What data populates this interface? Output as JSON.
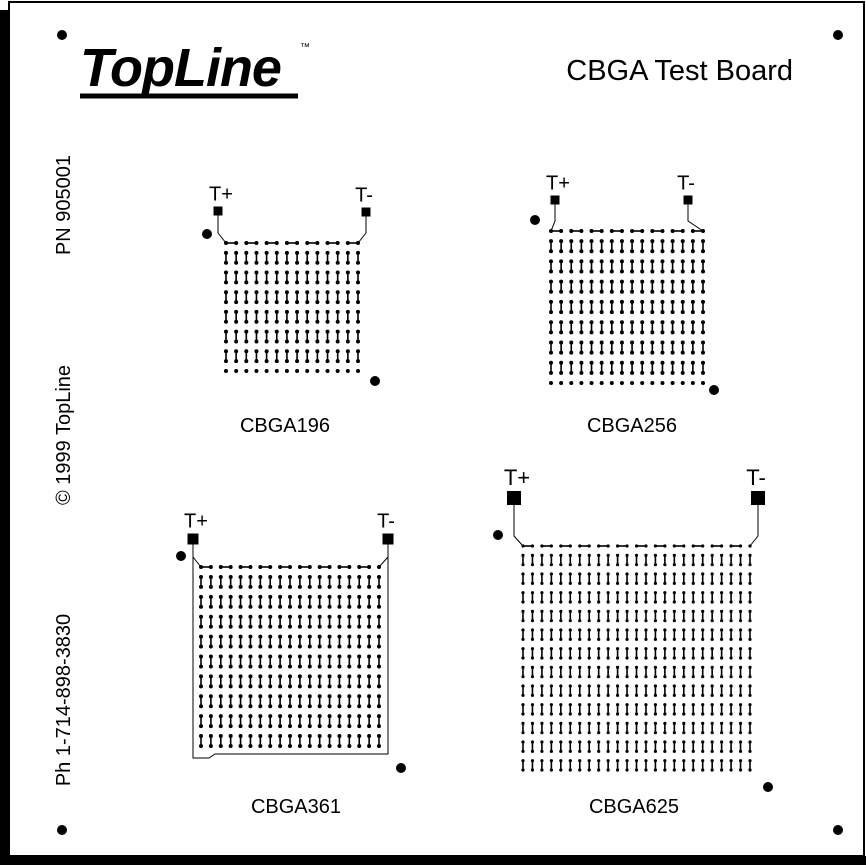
{
  "header": {
    "logo": "TopLine",
    "trademark": "™",
    "title": "CBGA Test Board"
  },
  "side_text": [
    "PN 905001",
    "© 1999 TopLine",
    "Ph 1-714-898-3830"
  ],
  "packages": [
    {
      "label": "CBGA196",
      "test_plus": "T+",
      "test_minus": "T-"
    },
    {
      "label": "CBGA256",
      "test_plus": "T+",
      "test_minus": "T-"
    },
    {
      "label": "CBGA361",
      "test_plus": "T+",
      "test_minus": "T-"
    },
    {
      "label": "CBGA625",
      "test_plus": "T+",
      "test_minus": "T-"
    }
  ]
}
